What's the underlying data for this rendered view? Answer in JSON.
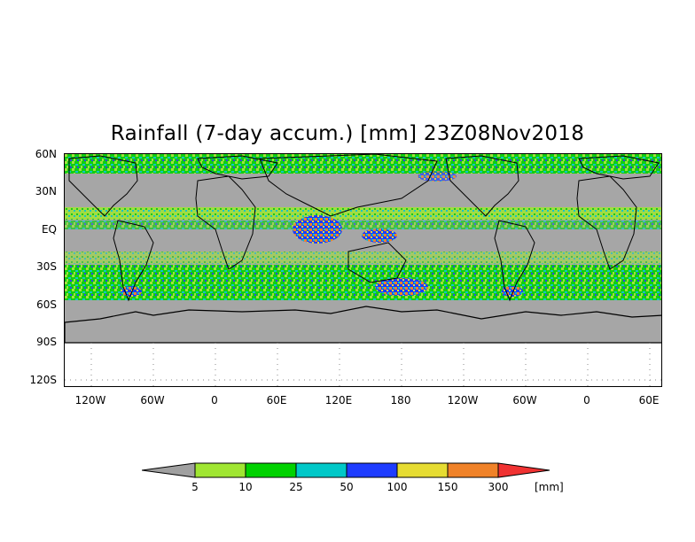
{
  "title": "Rainfall (7-day accum.) [mm] 23Z08Nov2018",
  "y_axis": {
    "labels": [
      "60N",
      "30N",
      "EQ",
      "30S",
      "60S",
      "90S",
      "120S"
    ]
  },
  "x_axis": {
    "labels": [
      "120W",
      "60W",
      "0",
      "60E",
      "120E",
      "180",
      "120W",
      "60W",
      "0",
      "60E"
    ]
  },
  "colors": {
    "no_data": "#a6a6a6",
    "land_outline": "#000000"
  },
  "legend": {
    "unit": "[mm]",
    "thresholds": [
      "5",
      "10",
      "25",
      "50",
      "100",
      "150",
      "300"
    ],
    "colors": [
      "#a0a0a0",
      "#a0e632",
      "#00d200",
      "#00c8c8",
      "#1e3cff",
      "#e6dc32",
      "#f08228",
      "#f03232"
    ]
  }
}
